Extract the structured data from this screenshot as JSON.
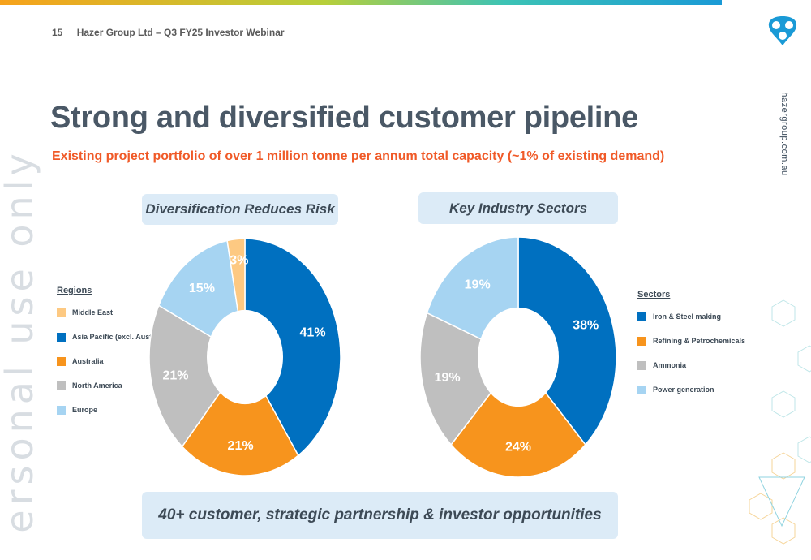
{
  "header": {
    "page_number": "15",
    "deck_title": "Hazer Group Ltd – Q3 FY25 Investor Webinar"
  },
  "title": "Strong and diversified customer pipeline",
  "subtitle": "Existing project portfolio of over 1 million tonne per annum total capacity (~1% of existing demand)",
  "watermark": "ersonal use only",
  "website": "hazergroup.com.au",
  "footer_banner": "40+ customer, strategic partnership & investor opportunities",
  "colors": {
    "accent_orange": "#f05a28",
    "title": "#4a5866",
    "pill_bg": "#dcebf7"
  },
  "icons": {
    "logo": "hazer-logo-icon",
    "decor": "hexagon-pattern-icon"
  },
  "chart_data": [
    {
      "type": "pie",
      "title": "Diversification Reduces Risk",
      "legend_title": "Regions",
      "legend_position": "left",
      "donut": true,
      "slices": [
        {
          "label": "Middle East",
          "value": 3,
          "value_label": "3%",
          "color": "#fdc982"
        },
        {
          "label": "Asia Pacific (excl. Aust)",
          "value": 41,
          "value_label": "41%",
          "color": "#0070c0"
        },
        {
          "label": "Australia",
          "value": 21,
          "value_label": "21%",
          "color": "#f7941d"
        },
        {
          "label": "North America",
          "value": 21,
          "value_label": "21%",
          "color": "#bfbfbf"
        },
        {
          "label": "Europe",
          "value": 15,
          "value_label": "15%",
          "color": "#a6d4f2"
        }
      ],
      "pie_order": [
        1,
        2,
        3,
        4,
        0
      ]
    },
    {
      "type": "pie",
      "title": "Key Industry Sectors",
      "legend_title": "Sectors",
      "legend_position": "right",
      "donut": true,
      "slices": [
        {
          "label": "Iron & Steel making",
          "value": 38,
          "value_label": "38%",
          "color": "#0070c0"
        },
        {
          "label": "Refining & Petrochemicals",
          "value": 24,
          "value_label": "24%",
          "color": "#f7941d"
        },
        {
          "label": "Ammonia",
          "value": 19,
          "value_label": "19%",
          "color": "#bfbfbf"
        },
        {
          "label": "Power generation",
          "value": 19,
          "value_label": "19%",
          "color": "#a6d4f2"
        }
      ],
      "pie_order": [
        0,
        1,
        2,
        3
      ]
    }
  ]
}
